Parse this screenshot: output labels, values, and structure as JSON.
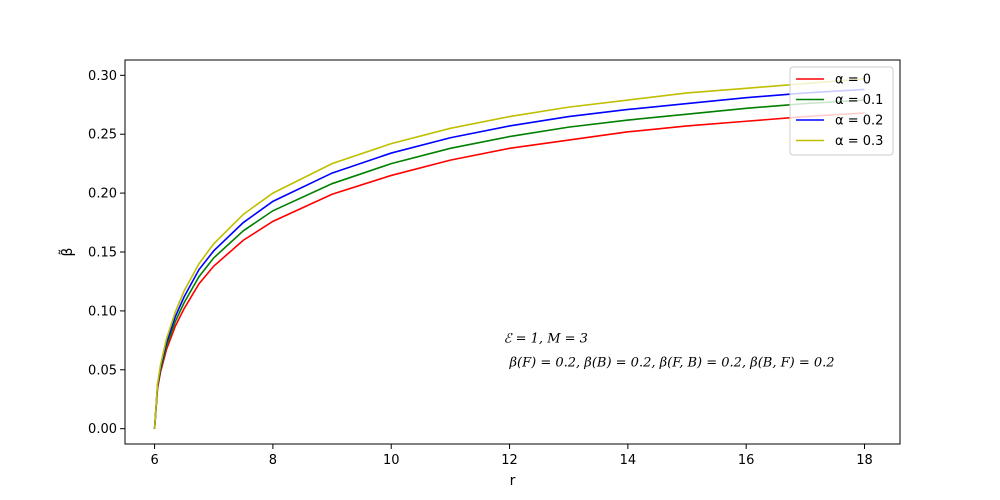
{
  "chart_data": {
    "type": "line",
    "xlabel": "r",
    "ylabel": "β̃",
    "xlim": [
      5.5,
      18.6
    ],
    "ylim": [
      -0.013,
      0.313
    ],
    "xticks": [
      "6",
      "8",
      "10",
      "12",
      "14",
      "16",
      "18"
    ],
    "yticks": [
      "0.00",
      "0.05",
      "0.10",
      "0.15",
      "0.20",
      "0.25",
      "0.30"
    ],
    "grid": false,
    "legend_position": "top-right",
    "annotations": [
      "ℰ = 1, M = 3",
      "β(F) = 0.2, β(B) = 0.2, β(F, B) = 0.2, β(B, F) = 0.2"
    ],
    "series": [
      {
        "name": "α = 0",
        "color": "#ff0000",
        "x": [
          6.0,
          6.05,
          6.1,
          6.2,
          6.35,
          6.5,
          6.75,
          7,
          7.5,
          8,
          9,
          10,
          11,
          12,
          13,
          14,
          15,
          16,
          17,
          18
        ],
        "y": [
          0.0,
          0.034,
          0.048,
          0.067,
          0.087,
          0.102,
          0.123,
          0.138,
          0.16,
          0.176,
          0.199,
          0.215,
          0.228,
          0.238,
          0.245,
          0.252,
          0.257,
          0.261,
          0.265,
          0.268
        ]
      },
      {
        "name": "α = 0.1",
        "color": "#008000",
        "x": [
          6.0,
          6.05,
          6.1,
          6.2,
          6.35,
          6.5,
          6.75,
          7,
          7.5,
          8,
          9,
          10,
          11,
          12,
          13,
          14,
          15,
          16,
          17,
          18
        ],
        "y": [
          0.0,
          0.036,
          0.05,
          0.07,
          0.091,
          0.107,
          0.129,
          0.145,
          0.168,
          0.185,
          0.208,
          0.225,
          0.238,
          0.248,
          0.256,
          0.262,
          0.267,
          0.272,
          0.276,
          0.279
        ]
      },
      {
        "name": "α = 0.2",
        "color": "#0000ff",
        "x": [
          6.0,
          6.05,
          6.1,
          6.2,
          6.35,
          6.5,
          6.75,
          7,
          7.5,
          8,
          9,
          10,
          11,
          12,
          13,
          14,
          15,
          16,
          17,
          18
        ],
        "y": [
          0.0,
          0.037,
          0.052,
          0.073,
          0.095,
          0.112,
          0.135,
          0.151,
          0.175,
          0.193,
          0.217,
          0.234,
          0.247,
          0.257,
          0.265,
          0.271,
          0.276,
          0.281,
          0.285,
          0.288
        ]
      },
      {
        "name": "α = 0.3",
        "color": "#bfbf00",
        "x": [
          6.0,
          6.05,
          6.1,
          6.2,
          6.35,
          6.5,
          6.75,
          7,
          7.5,
          8,
          9,
          10,
          11,
          12,
          13,
          14,
          15,
          16,
          17,
          18
        ],
        "y": [
          0.0,
          0.038,
          0.054,
          0.076,
          0.099,
          0.117,
          0.14,
          0.157,
          0.182,
          0.2,
          0.225,
          0.242,
          0.255,
          0.265,
          0.273,
          0.279,
          0.285,
          0.289,
          0.293,
          0.297
        ]
      }
    ]
  }
}
